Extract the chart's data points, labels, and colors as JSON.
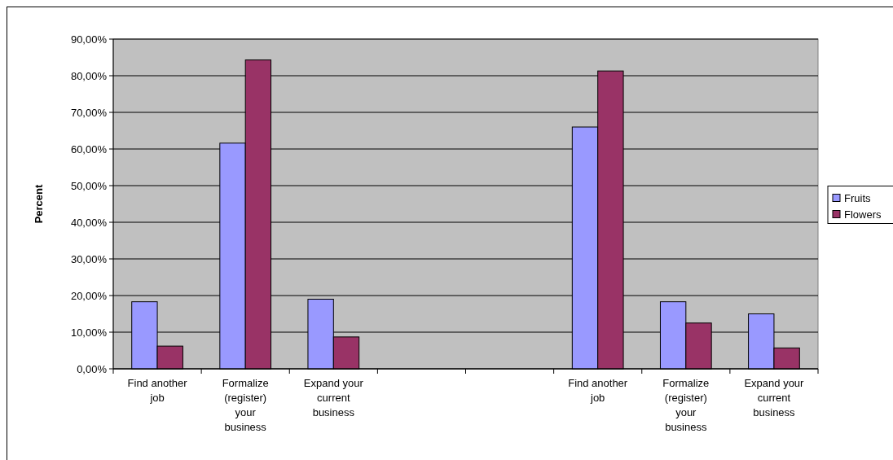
{
  "chart_data": {
    "type": "bar",
    "ylabel": "Percent",
    "categories": [
      "Find another job",
      "Formalize (register) your business",
      "Expand your current business",
      null,
      null,
      "Find another job",
      "Formalize (register) your business",
      "Expand your current business"
    ],
    "series": [
      {
        "name": "Fruits",
        "color": "#9999ff",
        "values": [
          18.3,
          61.6,
          19.0,
          null,
          null,
          66.0,
          18.3,
          15.0
        ]
      },
      {
        "name": "Flowers",
        "color": "#993366",
        "values": [
          6.2,
          84.3,
          8.7,
          null,
          null,
          81.3,
          12.5,
          5.7
        ]
      }
    ],
    "ylim": [
      0,
      90
    ],
    "yticks": [
      {
        "value": 0,
        "label": "0,00%"
      },
      {
        "value": 10,
        "label": "10,00%"
      },
      {
        "value": 20,
        "label": "20,00%"
      },
      {
        "value": 30,
        "label": "30,00%"
      },
      {
        "value": 40,
        "label": "40,00%"
      },
      {
        "value": 50,
        "label": "50,00%"
      },
      {
        "value": 60,
        "label": "60,00%"
      },
      {
        "value": 70,
        "label": "70,00%"
      },
      {
        "value": 80,
        "label": "80,00%"
      },
      {
        "value": 90,
        "label": "90,00%"
      }
    ],
    "grid": "y",
    "legend": "right"
  }
}
